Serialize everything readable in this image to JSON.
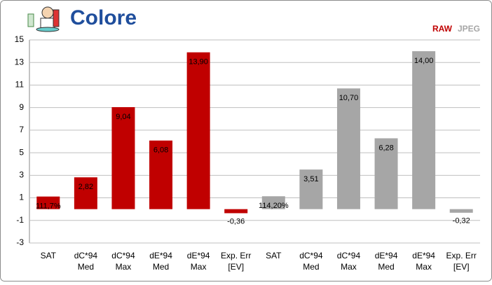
{
  "chart_data": {
    "type": "bar",
    "title": "Colore",
    "categories": [
      [
        "SAT"
      ],
      [
        "dC*94",
        "Med"
      ],
      [
        "dC*94",
        "Max"
      ],
      [
        "dE*94",
        "Med"
      ],
      [
        "dE*94",
        "Max"
      ],
      [
        "Exp. Err",
        "[EV]"
      ],
      [
        "SAT"
      ],
      [
        "dC*94",
        "Med"
      ],
      [
        "dC*94",
        "Max"
      ],
      [
        "dE*94",
        "Med"
      ],
      [
        "dE*94",
        "Max"
      ],
      [
        "Exp. Err",
        "[EV]"
      ]
    ],
    "series": [
      {
        "name": "RAW",
        "color": "#c00000",
        "values": [
          1.117,
          2.82,
          9.04,
          6.08,
          13.9,
          -0.36,
          null,
          null,
          null,
          null,
          null,
          null
        ],
        "value_labels": [
          "111,7%",
          "2,82",
          "9,04",
          "6,08",
          "13,90",
          "-0,36",
          null,
          null,
          null,
          null,
          null,
          null
        ]
      },
      {
        "name": "JPEG",
        "color": "#a6a6a6",
        "values": [
          null,
          null,
          null,
          null,
          null,
          null,
          1.142,
          3.51,
          10.7,
          6.28,
          14.0,
          -0.32
        ],
        "value_labels": [
          null,
          null,
          null,
          null,
          null,
          null,
          "114,20%",
          "3,51",
          "10,70",
          "6,28",
          "14,00",
          "-0,32"
        ]
      }
    ],
    "ylim": [
      -3,
      15
    ],
    "yticks": [
      -3,
      -1,
      1,
      3,
      5,
      7,
      9,
      11,
      13,
      15
    ],
    "grid": true
  }
}
